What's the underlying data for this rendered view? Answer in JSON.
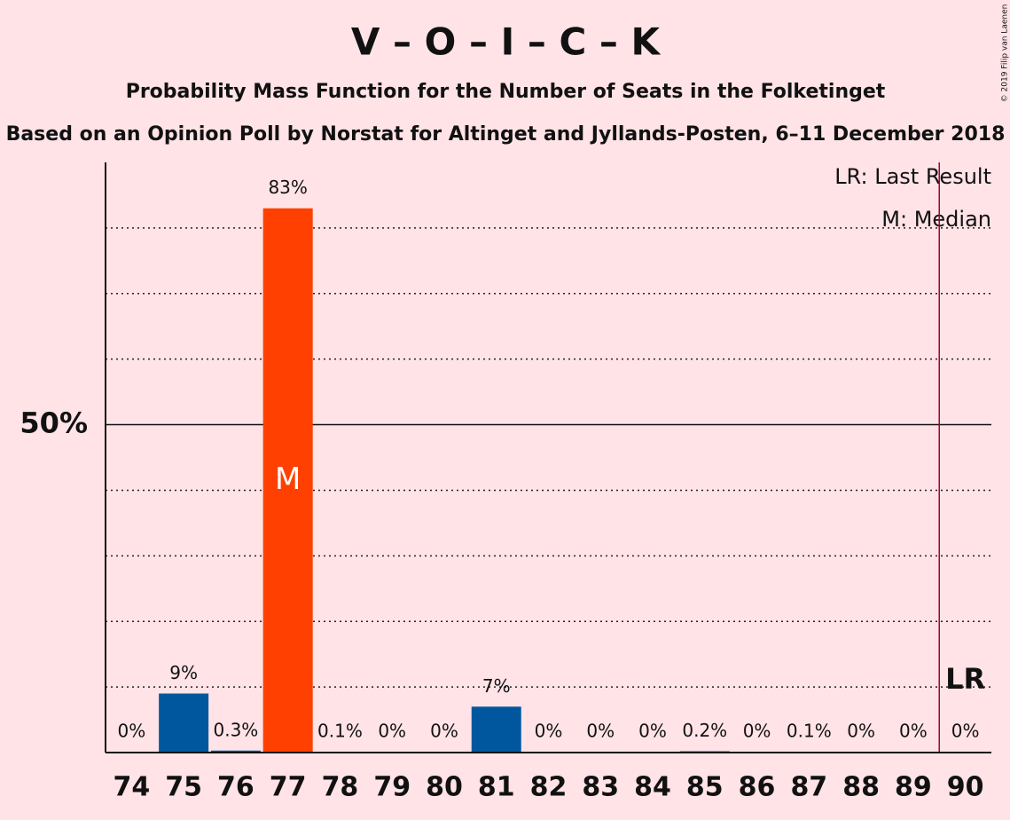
{
  "chart_data": {
    "type": "bar",
    "title": "V – O – I – C – K",
    "subtitle": "Probability Mass Function for the Number of Seats in the Folketinget",
    "caption": "Based on an Opinion Poll by Norstat for Altinget and Jyllands-Posten, 6–11 December 2018",
    "copyright": "© 2019 Filip van Laenen",
    "categories": [
      "74",
      "75",
      "76",
      "77",
      "78",
      "79",
      "80",
      "81",
      "82",
      "83",
      "84",
      "85",
      "86",
      "87",
      "88",
      "89",
      "90"
    ],
    "values": [
      0,
      9,
      0.3,
      83,
      0.1,
      0,
      0,
      7,
      0,
      0,
      0,
      0.2,
      0,
      0.1,
      0,
      0,
      0
    ],
    "value_labels": [
      "0%",
      "9%",
      "0.3%",
      "83%",
      "0.1%",
      "0%",
      "0%",
      "7%",
      "0%",
      "0%",
      "0%",
      "0.2%",
      "0%",
      "0.1%",
      "0%",
      "0%",
      "0%"
    ],
    "color": "#00579e",
    "median": "77",
    "median_label": "M",
    "median_color": "#ff4000",
    "last_result": "90",
    "last_result_label": "LR",
    "last_result_color": "#a0003c",
    "legend": [
      "LR: Last Result",
      "M: Median"
    ],
    "ylim": [
      0,
      90
    ],
    "yticks": [
      {
        "value": 50,
        "label": "50%"
      }
    ],
    "minor_yticks": [
      10,
      20,
      30,
      40,
      60,
      70,
      80
    ]
  }
}
